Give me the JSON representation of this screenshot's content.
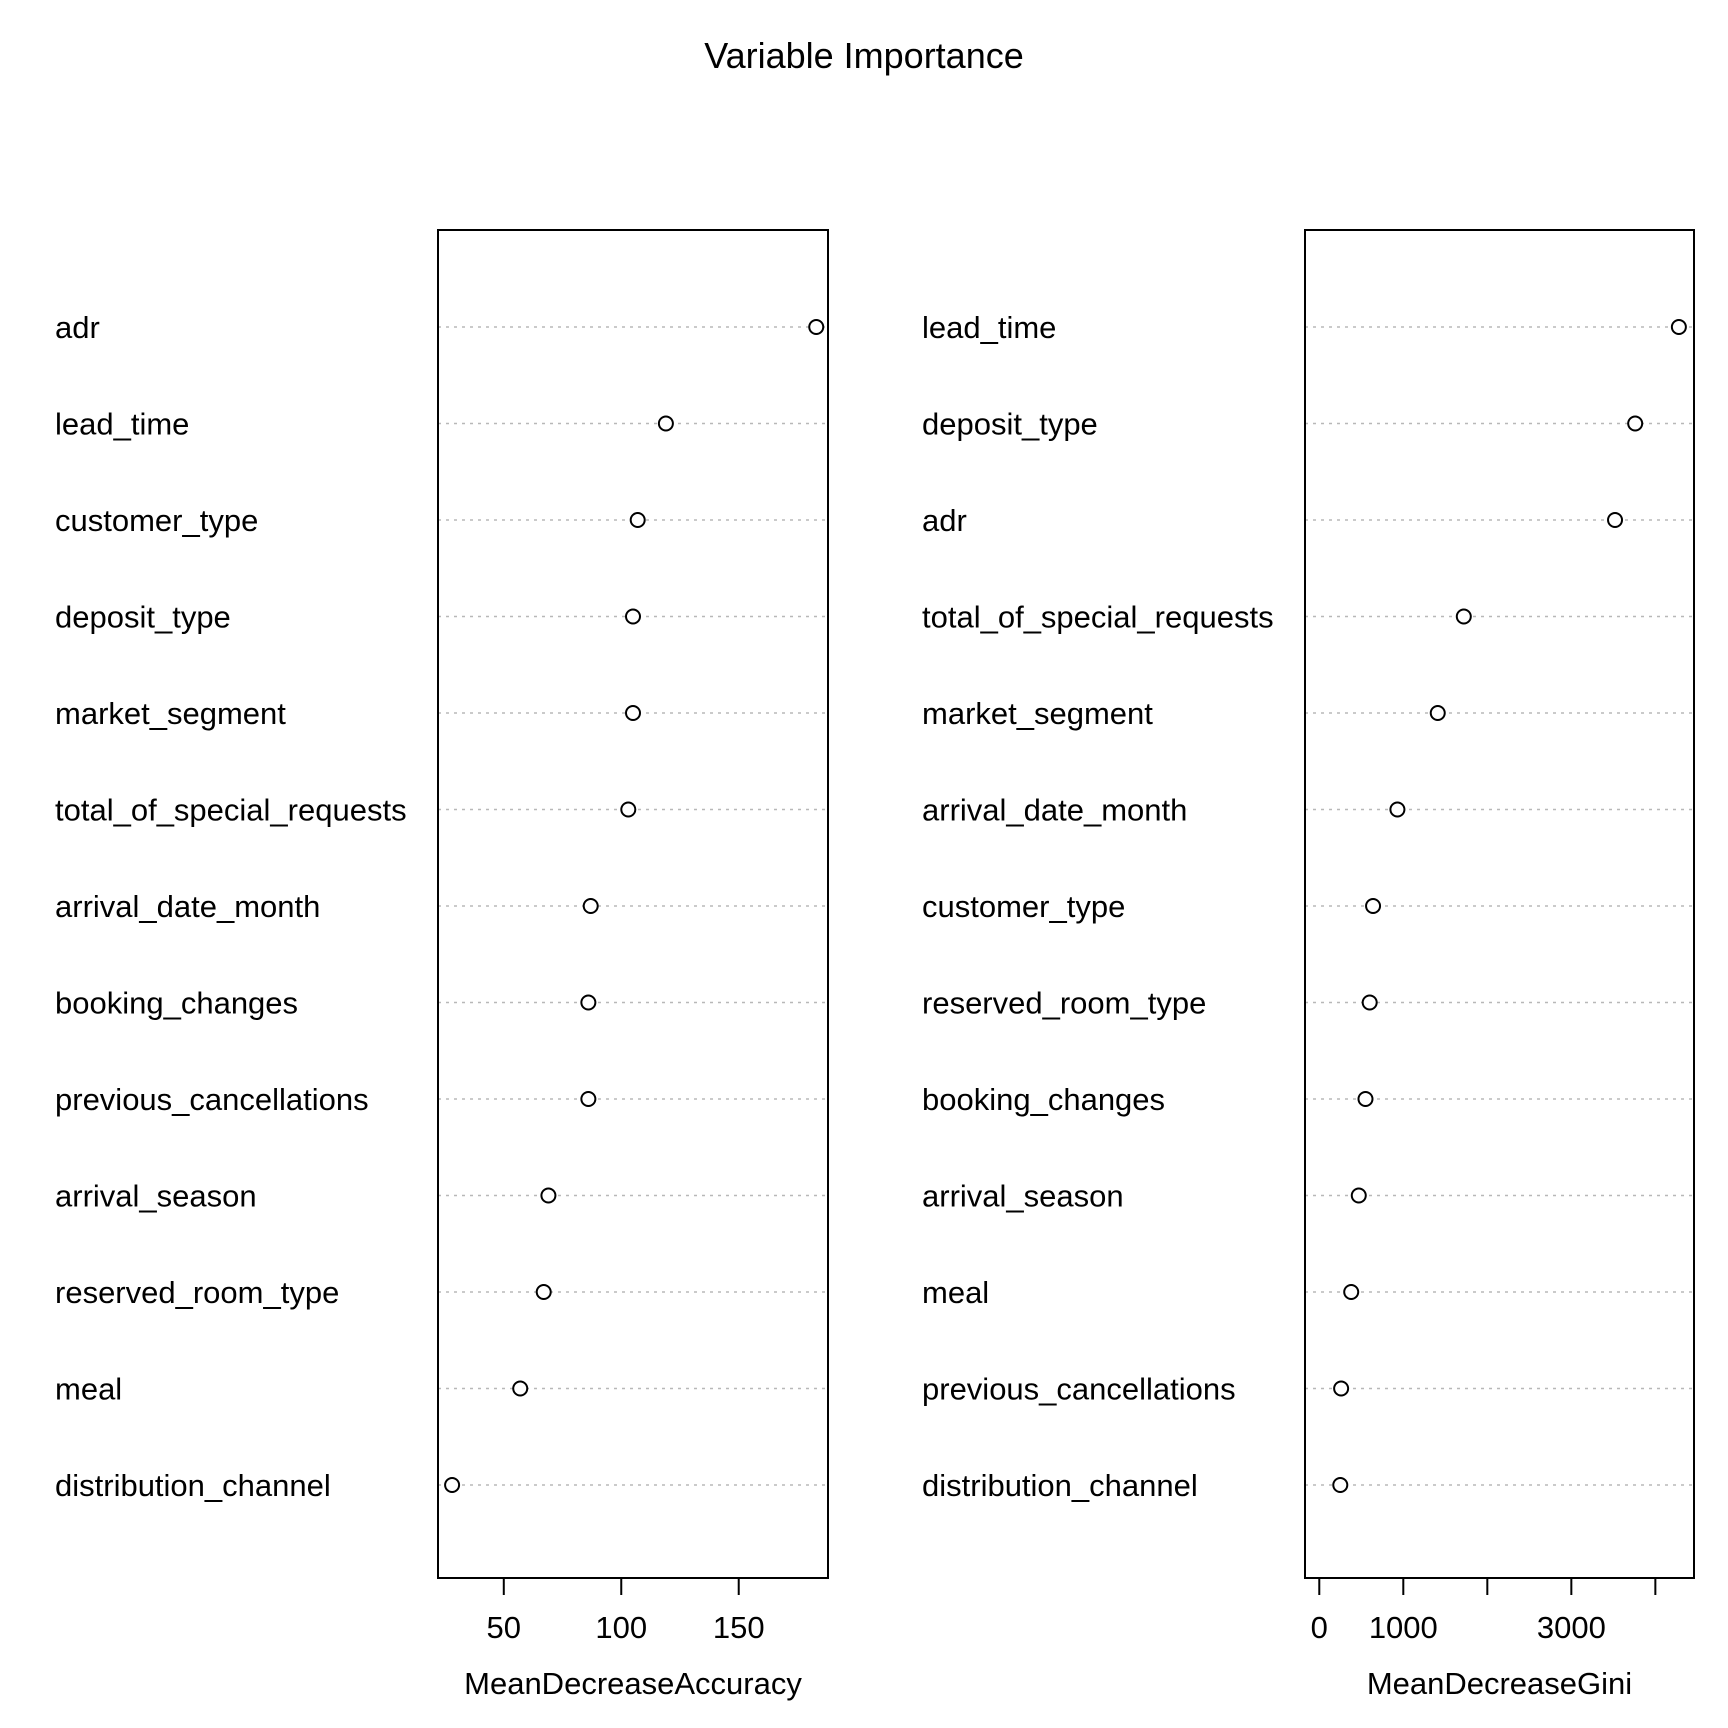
{
  "title": "Variable Importance",
  "chart_data": [
    {
      "type": "scatter",
      "xlabel": "MeanDecreaseAccuracy",
      "xlim": [
        22,
        188
      ],
      "ticks": [
        50,
        100,
        150
      ],
      "tick_labels": [
        "50",
        "100",
        "150"
      ],
      "grid": "dotted horizontal",
      "categories": [
        "adr",
        "lead_time",
        "customer_type",
        "deposit_type",
        "market_segment",
        "total_of_special_requests",
        "arrival_date_month",
        "booking_changes",
        "previous_cancellations",
        "arrival_season",
        "reserved_room_type",
        "meal",
        "distribution_channel"
      ],
      "values": [
        183,
        119,
        107,
        105,
        105,
        103,
        87,
        86,
        86,
        69,
        67,
        57,
        28
      ]
    },
    {
      "type": "scatter",
      "xlabel": "MeanDecreaseGini",
      "xlim": [
        -170,
        4460
      ],
      "ticks": [
        0,
        1000,
        2000,
        3000,
        4000
      ],
      "tick_labels": [
        "0",
        "1000",
        "",
        "3000",
        ""
      ],
      "grid": "dotted horizontal",
      "categories": [
        "lead_time",
        "deposit_type",
        "adr",
        "total_of_special_requests",
        "market_segment",
        "arrival_date_month",
        "customer_type",
        "reserved_room_type",
        "booking_changes",
        "arrival_season",
        "meal",
        "previous_cancellations",
        "distribution_channel"
      ],
      "values": [
        4280,
        3760,
        3520,
        1720,
        1410,
        930,
        640,
        600,
        550,
        470,
        380,
        260,
        250
      ]
    }
  ]
}
